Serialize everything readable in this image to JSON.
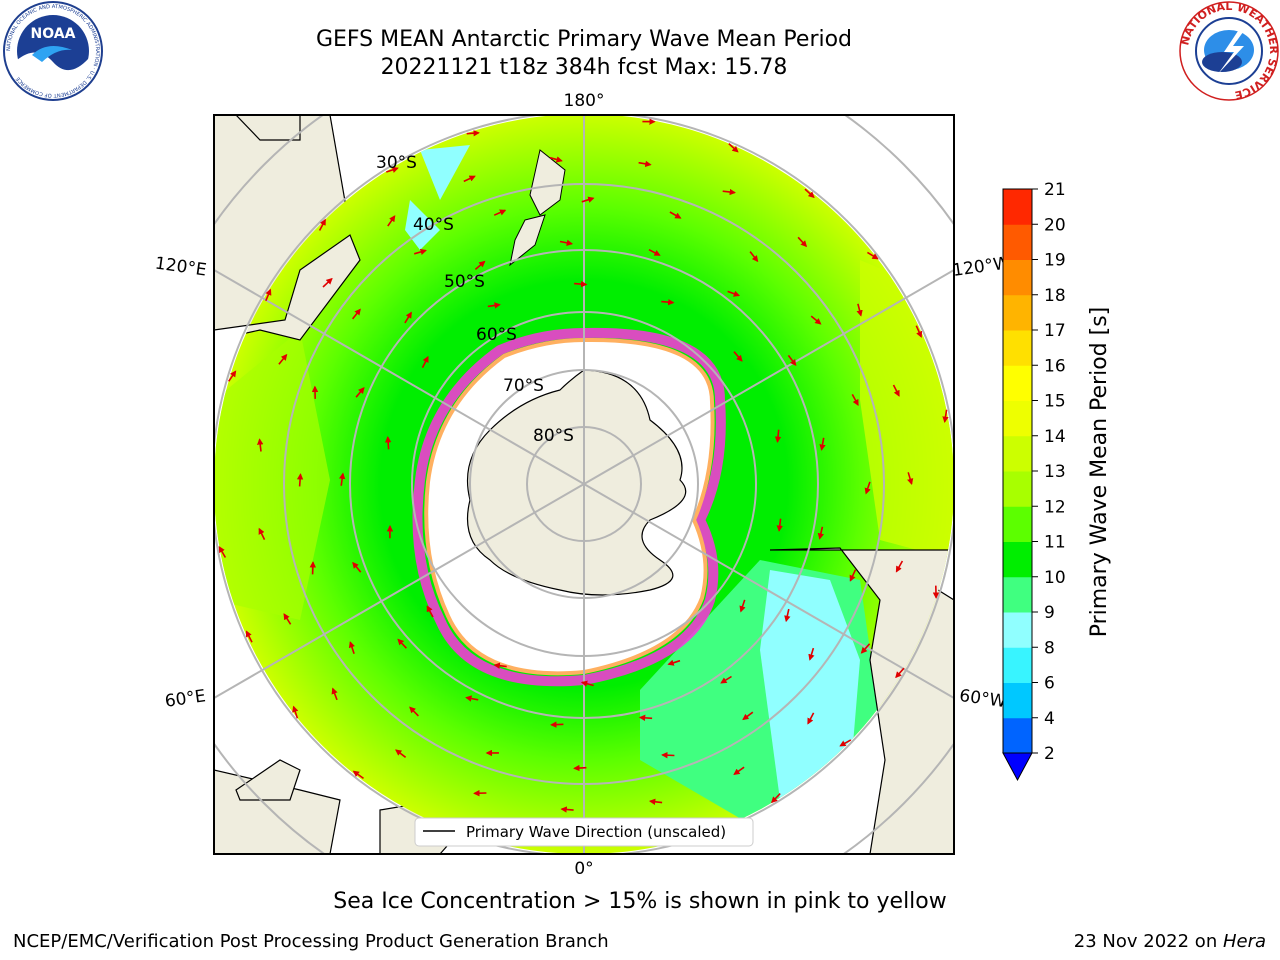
{
  "header": {
    "title_line1": "GEFS MEAN Antarctic Primary Wave Mean Period",
    "title_line2": "20221121 t18z 384h fcst   Max: 15.78"
  },
  "logos": {
    "left": {
      "name": "NOAA",
      "text": "NOAA",
      "ring_text": "NATIONAL OCEANIC AND ATMOSPHERIC ADMINISTRATION · U.S. DEPARTMENT OF COMMERCE"
    },
    "right": {
      "name": "National Weather Service",
      "ring_text": "NATIONAL WEATHER SERVICE"
    }
  },
  "map": {
    "projection": "south-polar-stereographic",
    "longitude_labels": [
      "180°",
      "120°E",
      "120°W",
      "60°E",
      "60°W",
      "0°"
    ],
    "latitude_labels": [
      "30°S",
      "40°S",
      "50°S",
      "60°S",
      "70°S",
      "80°S"
    ],
    "legend_label": "Primary Wave Direction (unscaled)",
    "colors": {
      "land": "#efedde",
      "ice": "#ffffff",
      "arrow": "#e00000",
      "grid": "#b5b5b5"
    }
  },
  "colorbar": {
    "label": "Primary Wave Mean Period [s]",
    "ticks": [
      "2",
      "4",
      "6",
      "8",
      "9",
      "10",
      "11",
      "12",
      "13",
      "14",
      "15",
      "16",
      "17",
      "18",
      "19",
      "20",
      "21"
    ],
    "colors": [
      "#0064ff",
      "#00c8ff",
      "#38f4ff",
      "#90ffff",
      "#40ff80",
      "#00ee00",
      "#5cff00",
      "#a8ff00",
      "#ccff00",
      "#eeff00",
      "#ffff00",
      "#ffe000",
      "#ffb400",
      "#ff8c00",
      "#ff5a00",
      "#ff2800"
    ],
    "extend_color": "#0000ff"
  },
  "footer": {
    "caption": "Sea Ice Concentration > 15% is shown in pink to yellow",
    "left": "NCEP/EMC/Verification Post Processing Product Generation Branch",
    "right_prefix": "23 Nov 2022 on ",
    "right_host": "Hera"
  }
}
